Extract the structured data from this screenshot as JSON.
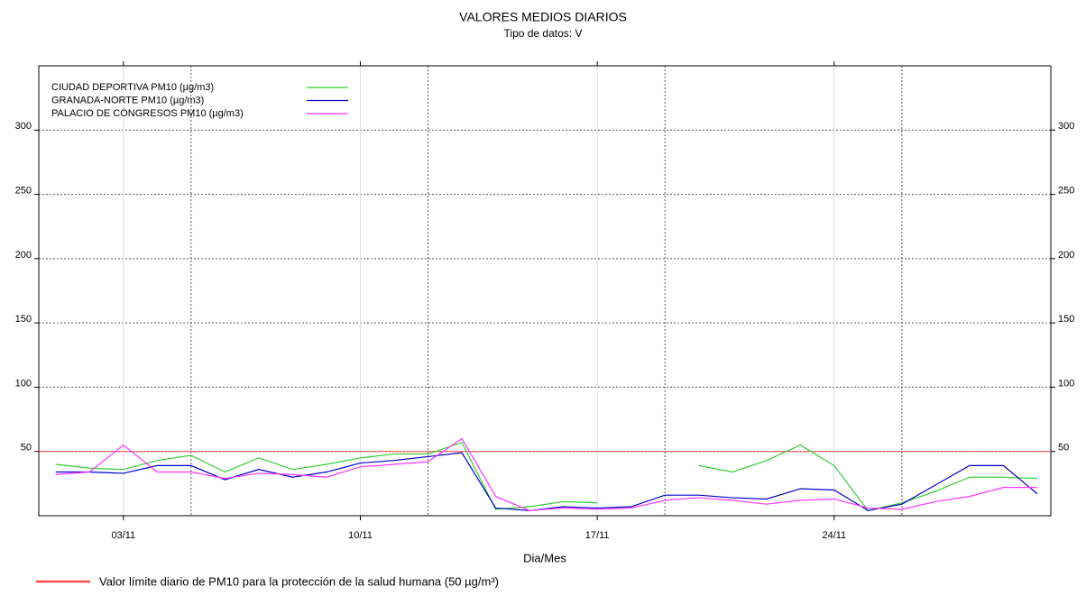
{
  "chart_data": {
    "type": "line",
    "title": "VALORES MEDIOS DIARIOS",
    "subtitle": "Tipo de datos: V",
    "xlabel": "Dia/Mes",
    "x": [
      1,
      2,
      3,
      4,
      5,
      6,
      7,
      8,
      9,
      10,
      11,
      12,
      13,
      14,
      15,
      16,
      17,
      18,
      19,
      20,
      21,
      22,
      23,
      24,
      25,
      26,
      27,
      28,
      29,
      30
    ],
    "xlim": [
      0.5,
      30.4
    ],
    "xticks": [
      {
        "value": 3,
        "label": "03/11"
      },
      {
        "value": 10,
        "label": "10/11"
      },
      {
        "value": 17,
        "label": "17/11"
      },
      {
        "value": 24,
        "label": "24/11"
      }
    ],
    "xminor": [
      5,
      12,
      19,
      26
    ],
    "ylim": [
      0,
      350
    ],
    "yticks": [
      50,
      100,
      150,
      200,
      250,
      300
    ],
    "grid": true,
    "legend": "upper left",
    "limit": {
      "value": 50,
      "color": "#ff4d4d",
      "label": "Valor límite diario de PM10  para la protección de la salud humana (50 µg/m³)"
    },
    "series": [
      {
        "name": "CIUDAD DEPORTIVA PM10 (µg/m3)",
        "color": "#33cc33",
        "values": [
          40,
          37,
          36,
          43,
          47,
          34,
          45,
          36,
          40,
          45,
          48,
          48,
          57,
          5,
          7,
          11,
          10,
          null,
          null,
          39,
          34,
          43,
          55,
          39,
          4,
          10,
          19,
          30,
          30,
          29
        ]
      },
      {
        "name": "GRANADA-NORTE PM10 (µg/m3)",
        "color": "#0000cc",
        "values": [
          34,
          34,
          33,
          39,
          39,
          28,
          36,
          30,
          34,
          41,
          43,
          46,
          49,
          6,
          4,
          7,
          6,
          7,
          16,
          16,
          14,
          13,
          21,
          20,
          4,
          9,
          24,
          39,
          39,
          17
        ]
      },
      {
        "name": "PALACIO DE CONGRESOS PM10 (µg/m3)",
        "color": "#ff33ff",
        "values": [
          32,
          34,
          55,
          34,
          34,
          29,
          33,
          32,
          30,
          38,
          40,
          42,
          60,
          15,
          4,
          6,
          5,
          6,
          12,
          14,
          12,
          9,
          12,
          13,
          6,
          5,
          11,
          15,
          22,
          22
        ]
      }
    ]
  }
}
